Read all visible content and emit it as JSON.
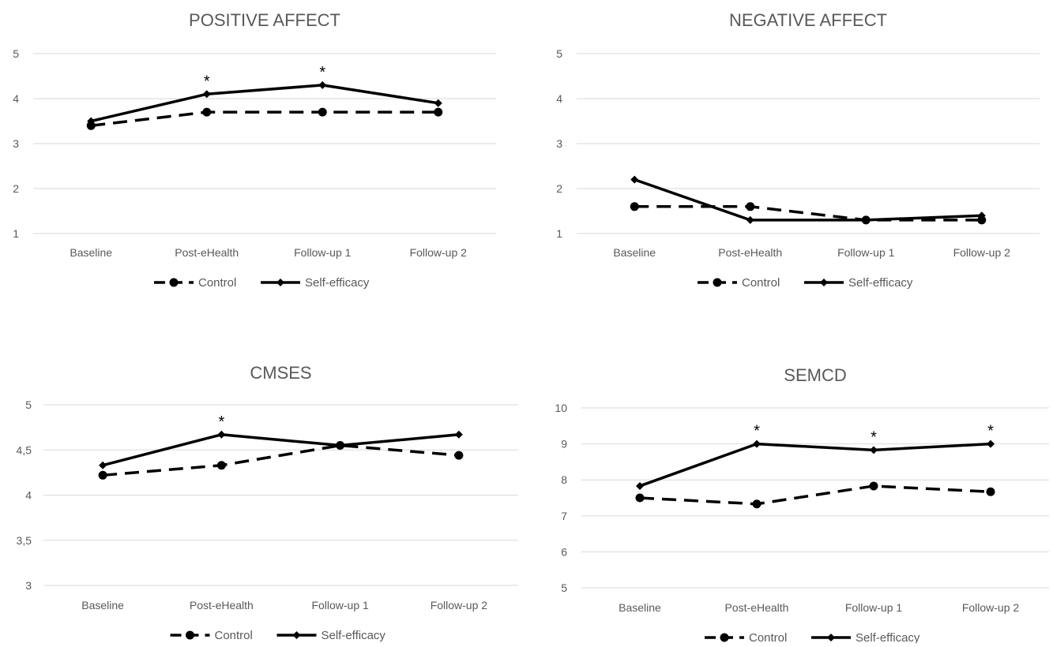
{
  "chart_data": [
    {
      "type": "line",
      "title": "POSITIVE AFFECT",
      "categories": [
        "Baseline",
        "Post-eHealth",
        "Follow-up 1",
        "Follow-up 2"
      ],
      "ylim": [
        1,
        5
      ],
      "yticks": [
        "1",
        "2",
        "3",
        "4",
        "5"
      ],
      "grid": true,
      "legend_position": "bottom",
      "series": [
        {
          "name": "Control",
          "values": [
            3.4,
            3.7,
            3.7,
            3.7
          ],
          "style": "dashed",
          "marker": "circle",
          "color": "#000000"
        },
        {
          "name": "Self-efficacy",
          "values": [
            3.5,
            4.1,
            4.3,
            3.9
          ],
          "style": "solid",
          "marker": "diamond",
          "color": "#000000"
        }
      ],
      "annotations": [
        {
          "category": "Post-eHealth",
          "text": "*"
        },
        {
          "category": "Follow-up 1",
          "text": "*"
        }
      ]
    },
    {
      "type": "line",
      "title": "NEGATIVE AFFECT",
      "categories": [
        "Baseline",
        "Post-eHealth",
        "Follow-up 1",
        "Follow-up 2"
      ],
      "ylim": [
        1,
        5
      ],
      "yticks": [
        "1",
        "2",
        "3",
        "4",
        "5"
      ],
      "grid": true,
      "legend_position": "bottom",
      "series": [
        {
          "name": "Control",
          "values": [
            1.6,
            1.6,
            1.3,
            1.3
          ],
          "style": "dashed",
          "marker": "circle",
          "color": "#000000"
        },
        {
          "name": "Self-efficacy",
          "values": [
            2.2,
            1.3,
            1.3,
            1.4
          ],
          "style": "solid",
          "marker": "diamond",
          "color": "#000000"
        }
      ],
      "annotations": []
    },
    {
      "type": "line",
      "title": "CMSES",
      "categories": [
        "Baseline",
        "Post-eHealth",
        "Follow-up 1",
        "Follow-up 2"
      ],
      "ylim": [
        3,
        5
      ],
      "yticks": [
        "3",
        "3,5",
        "4",
        "4,5",
        "5"
      ],
      "grid": true,
      "legend_position": "bottom",
      "series": [
        {
          "name": "Control",
          "values": [
            4.22,
            4.33,
            4.55,
            4.44
          ],
          "style": "dashed",
          "marker": "circle",
          "color": "#000000"
        },
        {
          "name": "Self-efficacy",
          "values": [
            4.33,
            4.67,
            4.55,
            4.67
          ],
          "style": "solid",
          "marker": "diamond",
          "color": "#000000"
        }
      ],
      "annotations": [
        {
          "category": "Post-eHealth",
          "text": "*"
        }
      ]
    },
    {
      "type": "line",
      "title": "SEMCD",
      "categories": [
        "Baseline",
        "Post-eHealth",
        "Follow-up 1",
        "Follow-up 2"
      ],
      "ylim": [
        5,
        10
      ],
      "yticks": [
        "5",
        "6",
        "7",
        "8",
        "9",
        "10"
      ],
      "grid": true,
      "legend_position": "bottom",
      "series": [
        {
          "name": "Control",
          "values": [
            7.5,
            7.33,
            7.83,
            7.67
          ],
          "style": "dashed",
          "marker": "circle",
          "color": "#000000"
        },
        {
          "name": "Self-efficacy",
          "values": [
            7.83,
            9.0,
            8.83,
            9.0
          ],
          "style": "solid",
          "marker": "diamond",
          "color": "#000000"
        }
      ],
      "annotations": [
        {
          "category": "Post-eHealth",
          "text": "*"
        },
        {
          "category": "Follow-up 1",
          "text": "*"
        },
        {
          "category": "Follow-up 2",
          "text": "*"
        }
      ]
    }
  ]
}
